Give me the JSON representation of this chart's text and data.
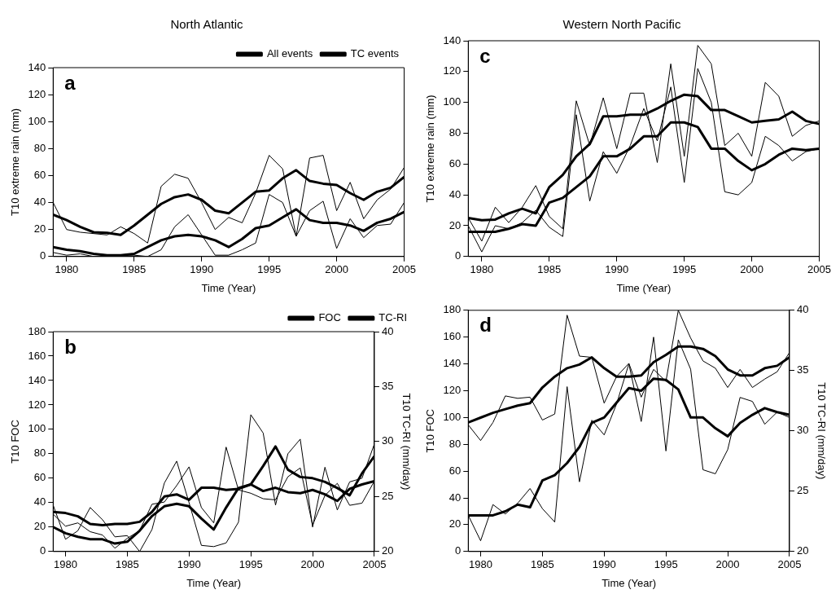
{
  "chart_data": [
    {
      "type": "line",
      "title": "North Atlantic",
      "xlabel": "Time (Year)",
      "ylabel": "T10 extreme rain (mm)",
      "annotations": [
        "a"
      ],
      "legend": "top right",
      "grid": false,
      "marker": "none",
      "x": [
        1979,
        1980,
        1981,
        1982,
        1983,
        1984,
        1985,
        1986,
        1987,
        1988,
        1989,
        1990,
        1991,
        1992,
        1993,
        1994,
        1995,
        1996,
        1997,
        1998,
        1999,
        2000,
        2001,
        2002,
        2003,
        2004,
        2005
      ],
      "xlim": [
        1979,
        2005
      ],
      "xticks": [
        1980,
        1985,
        1990,
        1995,
        2000,
        2005
      ],
      "ylim": [
        0,
        140
      ],
      "yticks": [
        0,
        20,
        40,
        60,
        80,
        100,
        120,
        140
      ],
      "series": [
        {
          "name": "All events",
          "color": "#000000",
          "values": [
            31,
            27,
            22,
            18,
            17.5,
            16,
            23,
            31,
            39,
            44,
            46,
            42,
            34,
            32,
            40,
            48,
            49,
            58,
            64,
            56,
            54,
            53,
            47,
            42,
            48,
            51,
            59
          ]
        },
        {
          "color": "#000000",
          "values": [
            40,
            20,
            18,
            17,
            16,
            22,
            17,
            10,
            52,
            61,
            58,
            40,
            20,
            29,
            25,
            47,
            75,
            65,
            15,
            73,
            75,
            34,
            55,
            28,
            42,
            50,
            66
          ]
        },
        {
          "name": "TC events",
          "color": "#000000",
          "values": [
            7,
            5,
            4,
            2,
            1,
            1,
            2,
            7,
            12,
            15,
            16,
            15,
            12,
            7,
            13,
            21,
            23,
            29,
            35,
            27,
            25,
            25,
            23,
            19,
            25,
            28,
            33
          ]
        },
        {
          "color": "#000000",
          "values": [
            3,
            1,
            2,
            0,
            0,
            1,
            1,
            0,
            5,
            22,
            31,
            16,
            1,
            1,
            5,
            10,
            46,
            40,
            15,
            34,
            41,
            6,
            28,
            14,
            23,
            24,
            40
          ]
        }
      ]
    },
    {
      "type": "line",
      "title": "Western North Pacific",
      "xlabel": "Time (Year)",
      "ylabel": "T10 extreme rain (mm)",
      "annotations": [
        "c"
      ],
      "grid": false,
      "marker": "none",
      "x": [
        1979,
        1980,
        1981,
        1982,
        1983,
        1984,
        1985,
        1986,
        1987,
        1988,
        1989,
        1990,
        1991,
        1992,
        1993,
        1994,
        1995,
        1996,
        1997,
        1998,
        1999,
        2000,
        2001,
        2002,
        2003,
        2004,
        2005
      ],
      "xlim": [
        1979,
        2005
      ],
      "xticks": [
        1980,
        1985,
        1990,
        1995,
        2000,
        2005
      ],
      "ylim": [
        0,
        140
      ],
      "yticks": [
        0,
        20,
        40,
        60,
        80,
        100,
        120,
        140
      ],
      "series": [
        {
          "color": "#000000",
          "values": [
            25,
            23.5,
            24,
            28,
            31,
            28,
            45,
            53,
            65,
            73,
            91,
            91,
            92,
            92,
            96,
            101,
            105,
            104,
            95,
            95,
            91,
            87,
            88,
            89,
            94,
            88,
            86
          ]
        },
        {
          "color": "#000000",
          "values": [
            25,
            10,
            32,
            22,
            32,
            46,
            26,
            18,
            101,
            72,
            103,
            70,
            106,
            106,
            61,
            125,
            65,
            137,
            125,
            72,
            80,
            65,
            113,
            104,
            78,
            85,
            88
          ]
        },
        {
          "color": "#000000",
          "values": [
            16,
            16,
            16,
            18,
            21,
            20,
            35,
            38,
            45,
            52,
            65,
            65,
            70,
            78,
            78,
            87,
            87,
            84,
            70,
            70,
            62,
            56,
            60,
            66,
            70,
            69,
            70
          ]
        },
        {
          "color": "#000000",
          "values": [
            20,
            3,
            20,
            18,
            22,
            30,
            19,
            13,
            92,
            36,
            68,
            54,
            72,
            96,
            75,
            110,
            48,
            122,
            100,
            42,
            40,
            48,
            78,
            72,
            62,
            68,
            70
          ]
        }
      ]
    },
    {
      "type": "line",
      "xlabel": "Time (Year)",
      "ylabel": "T10 FOC",
      "y2label": "T10 TC-RI (mm/day)",
      "annotations": [
        "b"
      ],
      "legend": "top right",
      "grid": false,
      "marker": "none",
      "x": [
        1979,
        1980,
        1981,
        1982,
        1983,
        1984,
        1985,
        1986,
        1987,
        1988,
        1989,
        1990,
        1991,
        1992,
        1993,
        1994,
        1995,
        1996,
        1997,
        1998,
        1999,
        2000,
        2001,
        2002,
        2003,
        2004,
        2005
      ],
      "xlim": [
        1979,
        2005
      ],
      "xticks": [
        1980,
        1985,
        1990,
        1995,
        2000,
        2005
      ],
      "ylim": [
        0,
        180
      ],
      "yticks": [
        0,
        20,
        40,
        60,
        80,
        100,
        120,
        140,
        160,
        180
      ],
      "y2lim": [
        20,
        40
      ],
      "y2ticks": [
        20,
        25,
        30,
        35,
        40
      ],
      "series": [
        {
          "name": "FOC",
          "color": "#000000",
          "values": [
            20,
            15,
            12,
            10,
            10,
            6.5,
            8,
            17,
            29,
            37,
            39,
            37,
            27,
            18,
            36,
            52,
            55,
            70,
            86,
            67,
            61,
            60,
            57,
            52,
            46,
            64,
            78
          ]
        },
        {
          "color": "#000000",
          "values": [
            38,
            10,
            17,
            36,
            26,
            12,
            13,
            0,
            18,
            56,
            74,
            40,
            5,
            4,
            7,
            24,
            112,
            97,
            38,
            80,
            92,
            20,
            69,
            34,
            57,
            60,
            88
          ]
        },
        {
          "name": "TC-RI",
          "color": "#000000",
          "axis": "y2",
          "values": [
            23.6,
            23.5,
            23.2,
            22.5,
            22.4,
            22.5,
            22.5,
            22.7,
            23.6,
            25.0,
            25.2,
            24.7,
            25.8,
            25.8,
            25.6,
            25.7,
            26.1,
            25.5,
            25.8,
            25.4,
            25.3,
            25.6,
            25.2,
            24.6,
            25.7,
            26.1,
            26.4
          ]
        },
        {
          "color": "#000000",
          "axis": "y2",
          "values": [
            23.4,
            22.3,
            22.6,
            21.8,
            21.5,
            20.3,
            21.2,
            21.9,
            24.3,
            24.5,
            26.0,
            27.7,
            24.0,
            22.6,
            29.5,
            25.6,
            25.3,
            24.8,
            24.7,
            26.8,
            27.6,
            22.4,
            25.1,
            26.2,
            24.2,
            24.4,
            26.4
          ]
        }
      ]
    },
    {
      "type": "line",
      "xlabel": "Time (Year)",
      "ylabel": "T10 FOC",
      "y2label": "T10 TC-RI (mm/day)",
      "annotations": [
        "d"
      ],
      "grid": false,
      "marker": "none",
      "x": [
        1979,
        1980,
        1981,
        1982,
        1983,
        1984,
        1985,
        1986,
        1987,
        1988,
        1989,
        1990,
        1991,
        1992,
        1993,
        1994,
        1995,
        1996,
        1997,
        1998,
        1999,
        2000,
        2001,
        2002,
        2003,
        2004,
        2005
      ],
      "xlim": [
        1979,
        2005
      ],
      "xticks": [
        1980,
        1985,
        1990,
        1995,
        2000,
        2005
      ],
      "ylim": [
        0,
        180
      ],
      "yticks": [
        0,
        20,
        40,
        60,
        80,
        100,
        120,
        140,
        160,
        180
      ],
      "y2lim": [
        20,
        40
      ],
      "y2ticks": [
        20,
        25,
        30,
        35,
        40
      ],
      "series": [
        {
          "color": "#000000",
          "values": [
            27,
            27,
            27,
            30,
            35,
            33,
            53,
            57,
            66,
            78,
            96,
            100,
            111,
            122,
            120,
            129,
            128,
            121,
            100,
            100,
            92,
            86,
            96,
            102,
            107,
            104,
            102
          ]
        },
        {
          "color": "#000000",
          "values": [
            27,
            8,
            35,
            28,
            36,
            47,
            32,
            22,
            123,
            52,
            98,
            87,
            110,
            140,
            97,
            160,
            75,
            158,
            136,
            61,
            58,
            76,
            115,
            112,
            95,
            104,
            100
          ]
        },
        {
          "color": "#000000",
          "axis": "y2",
          "values": [
            30.7,
            31.1,
            31.5,
            31.8,
            32.1,
            32.3,
            33.6,
            34.5,
            35.2,
            35.5,
            36.1,
            35.2,
            34.5,
            34.5,
            34.6,
            35.7,
            36.3,
            37.0,
            37.0,
            36.8,
            36.2,
            35.1,
            34.6,
            34.6,
            35.2,
            35.4,
            36.1
          ]
        },
        {
          "color": "#000000",
          "axis": "y2",
          "values": [
            30.5,
            29.2,
            30.7,
            32.9,
            32.7,
            32.8,
            30.9,
            31.4,
            39.6,
            36.2,
            36.1,
            32.3,
            34.5,
            35.6,
            32.8,
            35.1,
            34.1,
            40.0,
            37.7,
            35.8,
            35.2,
            33.6,
            35.1,
            33.6,
            34.3,
            34.9,
            36.5
          ]
        }
      ]
    }
  ]
}
